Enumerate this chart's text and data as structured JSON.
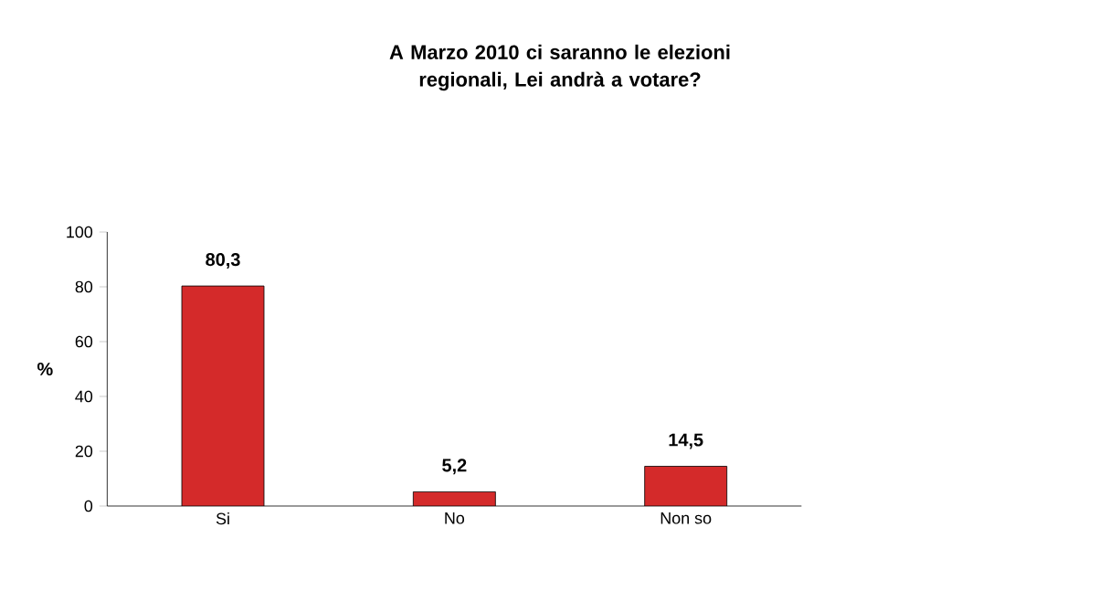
{
  "chart_data": {
    "type": "bar",
    "title": "A Marzo 2010 ci saranno le elezioni regionali, Lei andrà a votare?",
    "ylabel": "%",
    "categories": [
      "Si",
      "No",
      "Non so"
    ],
    "values": [
      80.3,
      5.2,
      14.5
    ],
    "value_labels": [
      "80,3",
      "5,2",
      "14,5"
    ],
    "color": "#d42a2a",
    "ylim": [
      0,
      100
    ],
    "yticks": [
      0,
      20,
      40,
      60,
      80,
      100
    ]
  }
}
